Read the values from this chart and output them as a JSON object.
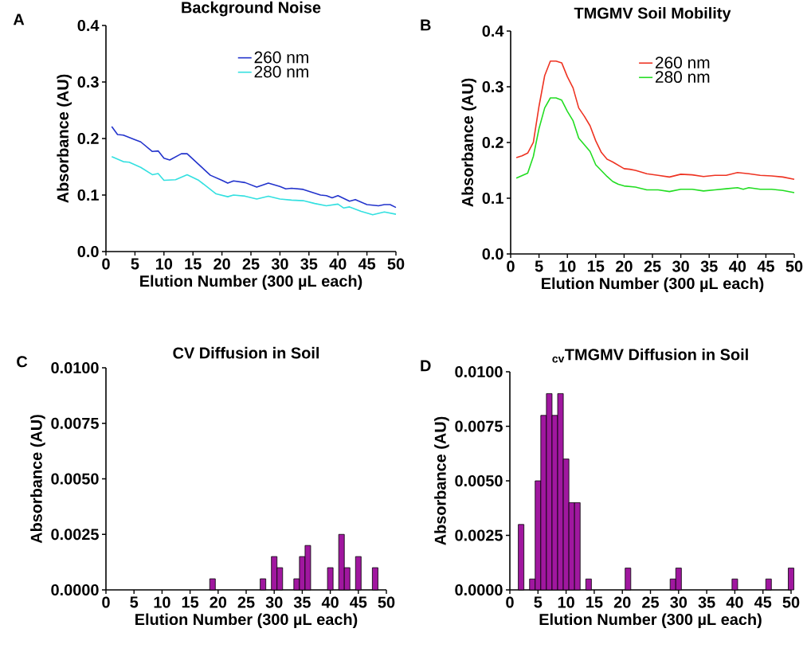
{
  "chart_data": [
    {
      "type": "line",
      "title": "Background Noise",
      "xlabel": "Elution Number (300 µL each)",
      "ylabel": "Absorbance (AU)",
      "annotations": [
        "A"
      ],
      "legend": "top",
      "xlim": [
        0,
        50
      ],
      "xticks": [
        0,
        5,
        10,
        15,
        20,
        25,
        30,
        35,
        40,
        45,
        50
      ],
      "ylim": [
        0,
        0.4
      ],
      "yticks": [
        {
          "value": 0,
          "label": "0.0"
        },
        0.1,
        0.2,
        0.3,
        0.4
      ],
      "series": [
        {
          "name": "260 nm",
          "color": "#2233cc",
          "x": [
            1,
            2,
            3,
            5,
            6,
            8,
            9,
            10,
            11,
            13,
            14,
            16,
            18,
            20,
            21,
            22,
            24,
            26,
            28,
            30,
            31,
            32,
            34,
            37,
            38,
            39,
            40,
            42,
            43,
            45,
            47,
            48,
            49,
            50
          ],
          "values": [
            0.221,
            0.207,
            0.206,
            0.198,
            0.194,
            0.177,
            0.178,
            0.165,
            0.162,
            0.173,
            0.173,
            0.154,
            0.135,
            0.126,
            0.121,
            0.125,
            0.122,
            0.114,
            0.121,
            0.115,
            0.111,
            0.112,
            0.11,
            0.1,
            0.099,
            0.095,
            0.099,
            0.089,
            0.092,
            0.083,
            0.081,
            0.083,
            0.083,
            0.078
          ]
        },
        {
          "name": "280 nm",
          "color": "#33e0e0",
          "x": [
            1,
            3,
            4,
            6,
            8,
            9,
            10,
            12,
            14,
            16,
            19,
            21,
            22,
            24,
            26,
            28,
            30,
            32,
            34,
            36,
            38,
            40,
            41,
            42,
            44,
            46,
            48,
            50
          ],
          "values": [
            0.168,
            0.159,
            0.158,
            0.149,
            0.136,
            0.138,
            0.126,
            0.127,
            0.136,
            0.126,
            0.102,
            0.097,
            0.1,
            0.098,
            0.093,
            0.098,
            0.093,
            0.091,
            0.09,
            0.085,
            0.081,
            0.084,
            0.077,
            0.079,
            0.071,
            0.065,
            0.07,
            0.066
          ]
        }
      ]
    },
    {
      "type": "line",
      "title": "TMGMV Soil Mobility",
      "xlabel": "Elution Number (300 µL each)",
      "ylabel": "Absorbance (AU)",
      "annotations": [
        "B"
      ],
      "legend": "top",
      "xlim": [
        0,
        50
      ],
      "xticks": [
        0,
        5,
        10,
        15,
        20,
        25,
        30,
        35,
        40,
        45,
        50
      ],
      "ylim": [
        0,
        0.4
      ],
      "yticks": [
        {
          "value": 0,
          "label": "0.0"
        },
        0.1,
        0.2,
        0.3,
        0.4
      ],
      "series": [
        {
          "name": "260 nm",
          "color": "#ee3322",
          "x": [
            1,
            2,
            3,
            4,
            5,
            6,
            7,
            8,
            9,
            10,
            11,
            12,
            13,
            14,
            15,
            16,
            17,
            18,
            20,
            21,
            22,
            24,
            26,
            28,
            30,
            32,
            34,
            36,
            38,
            40,
            42,
            44,
            46,
            48,
            50
          ],
          "values": [
            0.173,
            0.176,
            0.181,
            0.2,
            0.265,
            0.32,
            0.346,
            0.346,
            0.343,
            0.318,
            0.298,
            0.262,
            0.247,
            0.23,
            0.203,
            0.182,
            0.17,
            0.165,
            0.153,
            0.152,
            0.15,
            0.144,
            0.141,
            0.138,
            0.143,
            0.142,
            0.139,
            0.141,
            0.141,
            0.146,
            0.144,
            0.141,
            0.14,
            0.138,
            0.134
          ]
        },
        {
          "name": "280 nm",
          "color": "#22dd22",
          "x": [
            1,
            3,
            4,
            5,
            6,
            7,
            8,
            9,
            10,
            11,
            12,
            13,
            14,
            15,
            17,
            18,
            19,
            20,
            22,
            24,
            26,
            28,
            30,
            32,
            34,
            36,
            38,
            40,
            41,
            42,
            44,
            46,
            48,
            50
          ],
          "values": [
            0.136,
            0.145,
            0.175,
            0.225,
            0.262,
            0.28,
            0.28,
            0.276,
            0.256,
            0.239,
            0.208,
            0.196,
            0.184,
            0.16,
            0.139,
            0.13,
            0.125,
            0.122,
            0.12,
            0.115,
            0.115,
            0.112,
            0.116,
            0.116,
            0.113,
            0.115,
            0.117,
            0.119,
            0.116,
            0.119,
            0.116,
            0.116,
            0.114,
            0.11
          ]
        }
      ]
    },
    {
      "type": "bar",
      "title": "CV Diffusion in Soil",
      "xlabel": "Elution Number (300 µL each)",
      "ylabel": "Absorbance (AU)",
      "annotations": [
        "C"
      ],
      "xlim": [
        0,
        50
      ],
      "xticks": [
        0,
        5,
        10,
        15,
        20,
        25,
        30,
        35,
        40,
        45,
        50
      ],
      "ylim": [
        0,
        0.01
      ],
      "yticks": [
        {
          "value": 0,
          "label": "0.0000"
        },
        {
          "value": 0.0025,
          "label": "0.0025"
        },
        {
          "value": 0.005,
          "label": "0.0050"
        },
        {
          "value": 0.0075,
          "label": "0.0075"
        },
        {
          "value": 0.01,
          "label": "0.0100"
        }
      ],
      "color": "#a0179f",
      "x": [
        19,
        28,
        30,
        31,
        34,
        35,
        36,
        40,
        42,
        43,
        45,
        48
      ],
      "values": [
        0.0005,
        0.0005,
        0.0015,
        0.001,
        0.0005,
        0.0015,
        0.002,
        0.001,
        0.0025,
        0.001,
        0.0015,
        0.001
      ]
    },
    {
      "type": "bar",
      "title": "$_{cv}$TMGMV Diffusion in Soil",
      "xlabel": "Elution Number (300 µL each)",
      "ylabel": "Absorbance (AU)",
      "annotations": [
        "D"
      ],
      "xlim": [
        0,
        50
      ],
      "xticks": [
        0,
        5,
        10,
        15,
        20,
        25,
        30,
        35,
        40,
        45,
        50
      ],
      "ylim": [
        0,
        0.01
      ],
      "yticks": [
        {
          "value": 0,
          "label": "0.0000"
        },
        {
          "value": 0.0025,
          "label": "0.0025"
        },
        {
          "value": 0.005,
          "label": "0.0050"
        },
        {
          "value": 0.0075,
          "label": "0.0075"
        },
        {
          "value": 0.01,
          "label": "0.0100"
        }
      ],
      "color": "#a0179f",
      "x": [
        2,
        4,
        5,
        6,
        7,
        8,
        9,
        10,
        11,
        12,
        14,
        21,
        29,
        30,
        40,
        46,
        50
      ],
      "values": [
        0.003,
        0.0005,
        0.005,
        0.008,
        0.009,
        0.008,
        0.009,
        0.006,
        0.004,
        0.004,
        0.0005,
        0.001,
        0.0005,
        0.001,
        0.0005,
        0.0005,
        0.001
      ]
    }
  ]
}
